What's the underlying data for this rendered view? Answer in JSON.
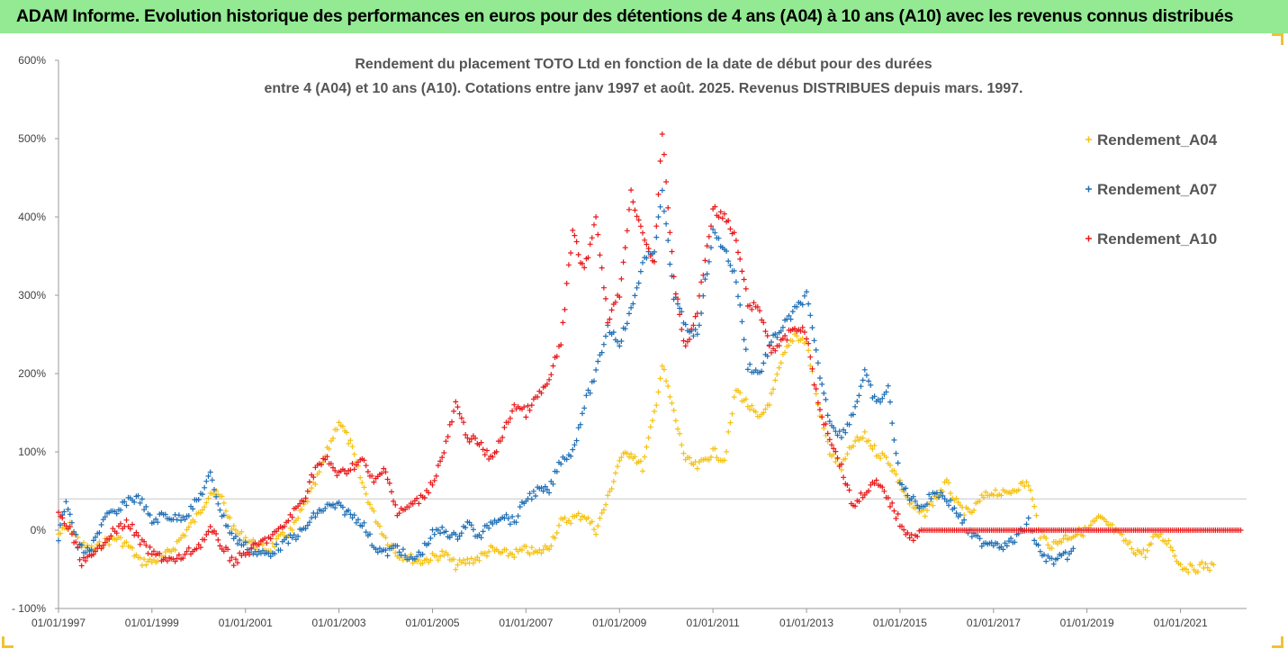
{
  "header": {
    "banner_title": "ADAM Informe. Evolution historique des performances en euros pour des détentions de 4 ans (A04) à 10 ans (A10) avec les revenus connus distribués"
  },
  "chart_data": {
    "type": "scatter",
    "title_line1": "Rendement du placement TOTO Ltd en fonction de la date de début pour des durées",
    "title_line2": "entre 4 (A04) et 10 ans (A10). Cotations entre janv 1997 et août. 2025. Revenus DISTRIBUES depuis mars. 1997.",
    "xlabel": "",
    "ylabel": "",
    "x_range": [
      "1997-01-01",
      "2022-06-01"
    ],
    "ylim": [
      -100,
      600
    ],
    "y_ticks": [
      "600%",
      "500%",
      "400%",
      "300%",
      "200%",
      "100%",
      "0%",
      "- 100%"
    ],
    "x_ticks": [
      "01/01/1997",
      "01/01/1999",
      "01/01/2001",
      "01/01/2003",
      "01/01/2005",
      "01/01/2007",
      "01/01/2009",
      "01/01/2011",
      "01/01/2013",
      "01/01/2015",
      "01/01/2017",
      "01/01/2019",
      "01/01/2021"
    ],
    "horizontal_gridlines": [
      40
    ],
    "marker": "+",
    "legend_position": "top-right",
    "colors": {
      "A04": "#f5c211",
      "A07": "#1f6fb5",
      "A10": "#e8191b"
    },
    "series": [
      {
        "name": "Rendement_A04",
        "color": "#f5c211",
        "points": [
          [
            "1997-01-01",
            -5
          ],
          [
            "1997-04-01",
            5
          ],
          [
            "1997-07-01",
            -20
          ],
          [
            "1997-10-01",
            -25
          ],
          [
            "1998-01-01",
            -15
          ],
          [
            "1998-04-01",
            -10
          ],
          [
            "1998-07-01",
            -20
          ],
          [
            "1998-10-01",
            -40
          ],
          [
            "1999-01-01",
            -40
          ],
          [
            "1999-04-01",
            -35
          ],
          [
            "1999-07-01",
            -20
          ],
          [
            "1999-10-01",
            0
          ],
          [
            "2000-01-01",
            20
          ],
          [
            "2000-04-01",
            50
          ],
          [
            "2000-07-01",
            40
          ],
          [
            "2000-10-01",
            0
          ],
          [
            "2001-01-01",
            -10
          ],
          [
            "2001-04-01",
            -20
          ],
          [
            "2001-07-01",
            -25
          ],
          [
            "2001-10-01",
            -10
          ],
          [
            "2002-01-01",
            0
          ],
          [
            "2002-04-01",
            30
          ],
          [
            "2002-07-01",
            60
          ],
          [
            "2002-10-01",
            100
          ],
          [
            "2003-01-01",
            140
          ],
          [
            "2003-04-01",
            110
          ],
          [
            "2003-07-01",
            60
          ],
          [
            "2003-10-01",
            20
          ],
          [
            "2004-01-01",
            -10
          ],
          [
            "2004-04-01",
            -30
          ],
          [
            "2004-07-01",
            -35
          ],
          [
            "2004-10-01",
            -40
          ],
          [
            "2005-01-01",
            -35
          ],
          [
            "2005-04-01",
            -30
          ],
          [
            "2005-07-01",
            -45
          ],
          [
            "2005-10-01",
            -40
          ],
          [
            "2006-01-01",
            -35
          ],
          [
            "2006-04-01",
            -25
          ],
          [
            "2006-07-01",
            -30
          ],
          [
            "2006-10-01",
            -30
          ],
          [
            "2007-01-01",
            -25
          ],
          [
            "2007-04-01",
            -30
          ],
          [
            "2007-07-01",
            -20
          ],
          [
            "2007-10-01",
            10
          ],
          [
            "2008-01-01",
            15
          ],
          [
            "2008-04-01",
            20
          ],
          [
            "2008-07-01",
            0
          ],
          [
            "2008-10-01",
            40
          ],
          [
            "2009-01-01",
            90
          ],
          [
            "2009-04-01",
            100
          ],
          [
            "2009-07-01",
            80
          ],
          [
            "2009-10-01",
            150
          ],
          [
            "2009-12-01",
            210
          ],
          [
            "2010-03-01",
            150
          ],
          [
            "2010-06-01",
            90
          ],
          [
            "2010-09-01",
            80
          ],
          [
            "2011-01-01",
            100
          ],
          [
            "2011-04-01",
            90
          ],
          [
            "2011-07-01",
            180
          ],
          [
            "2011-10-01",
            160
          ],
          [
            "2012-01-01",
            140
          ],
          [
            "2012-04-01",
            170
          ],
          [
            "2012-07-01",
            220
          ],
          [
            "2012-10-01",
            250
          ],
          [
            "2013-01-01",
            240
          ],
          [
            "2013-04-01",
            160
          ],
          [
            "2013-07-01",
            100
          ],
          [
            "2013-10-01",
            80
          ],
          [
            "2014-01-01",
            110
          ],
          [
            "2014-04-01",
            120
          ],
          [
            "2014-07-01",
            100
          ],
          [
            "2014-10-01",
            90
          ],
          [
            "2015-01-01",
            60
          ],
          [
            "2015-04-01",
            30
          ],
          [
            "2015-07-01",
            20
          ],
          [
            "2015-10-01",
            40
          ],
          [
            "2016-01-01",
            60
          ],
          [
            "2016-04-01",
            30
          ],
          [
            "2016-07-01",
            20
          ],
          [
            "2016-10-01",
            40
          ],
          [
            "2017-01-01",
            50
          ],
          [
            "2017-04-01",
            45
          ],
          [
            "2017-07-01",
            55
          ],
          [
            "2017-10-01",
            60
          ],
          [
            "2018-01-01",
            -5
          ],
          [
            "2018-04-01",
            -20
          ],
          [
            "2018-07-01",
            -10
          ],
          [
            "2018-10-01",
            -5
          ],
          [
            "2019-01-01",
            0
          ],
          [
            "2019-04-01",
            15
          ],
          [
            "2019-07-01",
            5
          ],
          [
            "2019-10-01",
            -10
          ],
          [
            "2020-01-01",
            -25
          ],
          [
            "2020-04-01",
            -30
          ],
          [
            "2020-07-01",
            -5
          ],
          [
            "2020-10-01",
            -15
          ],
          [
            "2021-01-01",
            -45
          ],
          [
            "2021-04-01",
            -50
          ],
          [
            "2021-07-01",
            -45
          ],
          [
            "2021-10-01",
            -48
          ]
        ]
      },
      {
        "name": "Rendement_A07",
        "color": "#1f6fb5",
        "points": [
          [
            "1997-01-01",
            -10
          ],
          [
            "1997-03-01",
            40
          ],
          [
            "1997-06-01",
            -20
          ],
          [
            "1997-09-01",
            -30
          ],
          [
            "1998-01-01",
            20
          ],
          [
            "1998-04-01",
            20
          ],
          [
            "1998-07-01",
            40
          ],
          [
            "1998-10-01",
            40
          ],
          [
            "1999-01-01",
            10
          ],
          [
            "1999-04-01",
            20
          ],
          [
            "1999-07-01",
            15
          ],
          [
            "1999-10-01",
            20
          ],
          [
            "2000-01-01",
            40
          ],
          [
            "2000-04-01",
            70
          ],
          [
            "2000-07-01",
            20
          ],
          [
            "2000-10-01",
            -10
          ],
          [
            "2001-01-01",
            -20
          ],
          [
            "2001-04-01",
            -30
          ],
          [
            "2001-07-01",
            -30
          ],
          [
            "2001-10-01",
            -20
          ],
          [
            "2002-01-01",
            -10
          ],
          [
            "2002-04-01",
            0
          ],
          [
            "2002-07-01",
            20
          ],
          [
            "2002-10-01",
            30
          ],
          [
            "2003-01-01",
            30
          ],
          [
            "2003-04-01",
            20
          ],
          [
            "2003-07-01",
            10
          ],
          [
            "2003-10-01",
            -20
          ],
          [
            "2004-01-01",
            -30
          ],
          [
            "2004-04-01",
            -20
          ],
          [
            "2004-07-01",
            -40
          ],
          [
            "2004-10-01",
            -30
          ],
          [
            "2005-01-01",
            -5
          ],
          [
            "2005-04-01",
            0
          ],
          [
            "2005-07-01",
            -10
          ],
          [
            "2005-10-01",
            10
          ],
          [
            "2006-01-01",
            -10
          ],
          [
            "2006-04-01",
            10
          ],
          [
            "2006-07-01",
            20
          ],
          [
            "2006-10-01",
            10
          ],
          [
            "2007-01-01",
            40
          ],
          [
            "2007-04-01",
            50
          ],
          [
            "2007-07-01",
            50
          ],
          [
            "2007-10-01",
            90
          ],
          [
            "2008-01-01",
            100
          ],
          [
            "2008-04-01",
            160
          ],
          [
            "2008-07-01",
            200
          ],
          [
            "2008-10-01",
            260
          ],
          [
            "2009-01-01",
            240
          ],
          [
            "2009-04-01",
            280
          ],
          [
            "2009-07-01",
            340
          ],
          [
            "2009-10-01",
            360
          ],
          [
            "2009-12-01",
            430
          ],
          [
            "2010-03-01",
            300
          ],
          [
            "2010-06-01",
            260
          ],
          [
            "2010-09-01",
            250
          ],
          [
            "2011-01-01",
            380
          ],
          [
            "2011-04-01",
            360
          ],
          [
            "2011-07-01",
            320
          ],
          [
            "2011-10-01",
            210
          ],
          [
            "2012-01-01",
            200
          ],
          [
            "2012-04-01",
            240
          ],
          [
            "2012-07-01",
            260
          ],
          [
            "2012-10-01",
            280
          ],
          [
            "2013-01-01",
            300
          ],
          [
            "2013-04-01",
            210
          ],
          [
            "2013-07-01",
            140
          ],
          [
            "2013-10-01",
            120
          ],
          [
            "2014-01-01",
            150
          ],
          [
            "2014-04-01",
            200
          ],
          [
            "2014-07-01",
            160
          ],
          [
            "2014-10-01",
            180
          ],
          [
            "2015-01-01",
            60
          ],
          [
            "2015-04-01",
            40
          ],
          [
            "2015-07-01",
            30
          ],
          [
            "2015-10-01",
            50
          ],
          [
            "2016-01-01",
            40
          ],
          [
            "2016-04-01",
            20
          ],
          [
            "2016-07-01",
            -5
          ],
          [
            "2016-10-01",
            -15
          ],
          [
            "2017-01-01",
            -15
          ],
          [
            "2017-04-01",
            -20
          ],
          [
            "2017-07-01",
            -10
          ],
          [
            "2017-10-01",
            10
          ],
          [
            "2018-01-01",
            -30
          ],
          [
            "2018-04-01",
            -40
          ],
          [
            "2018-07-01",
            -35
          ],
          [
            "2018-10-01",
            -25
          ]
        ]
      },
      {
        "name": "Rendement_A10",
        "color": "#e8191b",
        "points": [
          [
            "1997-01-01",
            20
          ],
          [
            "1997-04-01",
            0
          ],
          [
            "1997-07-01",
            -40
          ],
          [
            "1997-10-01",
            -35
          ],
          [
            "1998-01-01",
            -10
          ],
          [
            "1998-04-01",
            0
          ],
          [
            "1998-07-01",
            10
          ],
          [
            "1998-10-01",
            -15
          ],
          [
            "1999-01-01",
            -30
          ],
          [
            "1999-04-01",
            -35
          ],
          [
            "1999-07-01",
            -40
          ],
          [
            "1999-10-01",
            -30
          ],
          [
            "2000-01-01",
            -20
          ],
          [
            "2000-04-01",
            0
          ],
          [
            "2000-07-01",
            -20
          ],
          [
            "2000-10-01",
            -40
          ],
          [
            "2001-01-01",
            -30
          ],
          [
            "2001-04-01",
            -20
          ],
          [
            "2001-07-01",
            -10
          ],
          [
            "2001-10-01",
            0
          ],
          [
            "2002-01-01",
            20
          ],
          [
            "2002-04-01",
            40
          ],
          [
            "2002-07-01",
            80
          ],
          [
            "2002-10-01",
            90
          ],
          [
            "2003-01-01",
            70
          ],
          [
            "2003-04-01",
            80
          ],
          [
            "2003-07-01",
            90
          ],
          [
            "2003-10-01",
            60
          ],
          [
            "2004-01-01",
            80
          ],
          [
            "2004-04-01",
            20
          ],
          [
            "2004-07-01",
            30
          ],
          [
            "2004-10-01",
            40
          ],
          [
            "2005-01-01",
            60
          ],
          [
            "2005-04-01",
            100
          ],
          [
            "2005-07-01",
            160
          ],
          [
            "2005-10-01",
            120
          ],
          [
            "2006-01-01",
            110
          ],
          [
            "2006-04-01",
            90
          ],
          [
            "2006-07-01",
            120
          ],
          [
            "2006-10-01",
            160
          ],
          [
            "2007-01-01",
            150
          ],
          [
            "2007-04-01",
            170
          ],
          [
            "2007-07-01",
            190
          ],
          [
            "2007-10-01",
            240
          ],
          [
            "2008-01-01",
            380
          ],
          [
            "2008-04-01",
            330
          ],
          [
            "2008-07-01",
            400
          ],
          [
            "2008-10-01",
            270
          ],
          [
            "2009-01-01",
            300
          ],
          [
            "2009-04-01",
            430
          ],
          [
            "2009-07-01",
            380
          ],
          [
            "2009-10-01",
            340
          ],
          [
            "2009-12-01",
            510
          ],
          [
            "2010-03-01",
            320
          ],
          [
            "2010-06-01",
            230
          ],
          [
            "2010-09-01",
            280
          ],
          [
            "2011-01-01",
            410
          ],
          [
            "2011-04-01",
            400
          ],
          [
            "2011-07-01",
            370
          ],
          [
            "2011-10-01",
            290
          ],
          [
            "2012-01-01",
            280
          ],
          [
            "2012-04-01",
            230
          ],
          [
            "2012-07-01",
            240
          ],
          [
            "2012-10-01",
            260
          ],
          [
            "2013-01-01",
            250
          ],
          [
            "2013-04-01",
            160
          ],
          [
            "2013-07-01",
            120
          ],
          [
            "2013-10-01",
            80
          ],
          [
            "2014-01-01",
            30
          ],
          [
            "2014-04-01",
            50
          ],
          [
            "2014-07-01",
            60
          ],
          [
            "2014-10-01",
            40
          ],
          [
            "2015-01-01",
            10
          ],
          [
            "2015-04-01",
            -10
          ],
          [
            "2015-07-01",
            0
          ],
          [
            "2016-01-01",
            0
          ],
          [
            "2016-07-01",
            0
          ],
          [
            "2017-01-01",
            0
          ],
          [
            "2017-07-01",
            0
          ],
          [
            "2018-01-01",
            0
          ],
          [
            "2018-07-01",
            0
          ],
          [
            "2019-01-01",
            0
          ],
          [
            "2019-07-01",
            0
          ],
          [
            "2020-01-01",
            0
          ],
          [
            "2020-07-01",
            0
          ],
          [
            "2021-01-01",
            0
          ],
          [
            "2021-07-01",
            0
          ],
          [
            "2022-01-01",
            0
          ],
          [
            "2022-05-01",
            0
          ]
        ]
      }
    ]
  }
}
